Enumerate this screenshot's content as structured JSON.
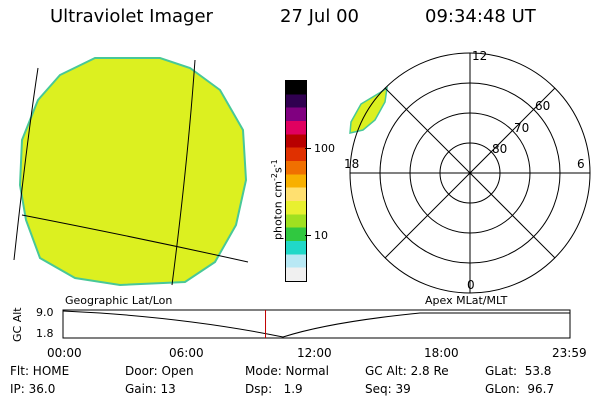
{
  "header": {
    "title": "Ultraviolet Imager",
    "date": "27 Jul 00",
    "time": "09:34:48 UT"
  },
  "colorbar": {
    "unit_label": "photon cm",
    "unit_exp1": "-2",
    "unit_mid": "s",
    "unit_exp2": "-1",
    "ticks": [
      "100",
      "10"
    ],
    "colors": [
      "#f0f0f0",
      "#b8e8f4",
      "#20d8c8",
      "#30c840",
      "#a0e020",
      "#e8f030",
      "#ffe070",
      "#f8b000",
      "#f07000",
      "#e03000",
      "#b80000",
      "#e00060",
      "#800080",
      "#300050",
      "#000000"
    ]
  },
  "geo_image": {
    "fill_color": "#dcf020",
    "edge_color": "#48c898"
  },
  "polar": {
    "mlt_labels": [
      "12",
      "18",
      "6",
      "0"
    ],
    "lat_labels": [
      "60",
      "70",
      "80"
    ],
    "aurora_color": "#dcf020"
  },
  "timeline": {
    "left_caption": "Geographic Lat/Lon",
    "right_caption": "Apex MLat/MLT",
    "ylabel": "GC Alt",
    "yticks": [
      "9.0",
      "1.8"
    ],
    "xticks": [
      "00:00",
      "06:00",
      "12:00",
      "18:00",
      "23:59"
    ],
    "marker_time": "09:34:48",
    "marker_color": "#c00000"
  },
  "info": {
    "flt": "Flt: HOME",
    "ip": "IP: 36.0",
    "door": "Door: Open",
    "gain": "Gain: 13",
    "mode": "Mode: Normal",
    "dsp": "Dsp:   1.9",
    "gcalt": "GC Alt: 2.8 Re",
    "seq": "Seq: 39",
    "glat": "GLat:  53.8",
    "glon": "GLon:  96.7"
  }
}
